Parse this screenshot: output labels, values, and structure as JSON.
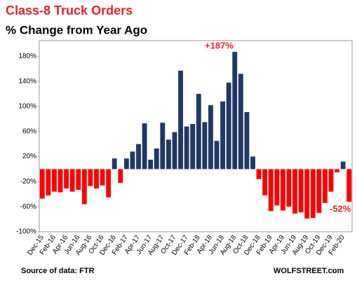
{
  "chart_data": {
    "type": "bar",
    "title": "Class-8 Truck Orders",
    "subtitle": "% Change from Year Ago",
    "categories": [
      "Dec-15",
      null,
      "Feb-16",
      null,
      "Apr-16",
      null,
      "Jun-16",
      null,
      "Aug-16",
      null,
      "Oct-16",
      null,
      "Dec-16",
      null,
      "Feb-17",
      null,
      "Apr-17",
      null,
      "Jun-17",
      null,
      "Aug-17",
      null,
      "Oct-17",
      null,
      "Dec-17",
      null,
      "Feb-18",
      null,
      "Apr-18",
      null,
      "Jun-18",
      null,
      "Aug-18",
      null,
      "Oct-18",
      null,
      "Dec-18",
      null,
      "Feb-19",
      null,
      "Apr-19",
      null,
      "Jun-19",
      null,
      "Aug-19",
      null,
      "Oct-19",
      null,
      "Dec-19",
      null,
      "Feb-20",
      null
    ],
    "values": [
      -47,
      -42,
      -36,
      -37,
      -31,
      -36,
      -33,
      -56,
      -27,
      -31,
      -26,
      -45,
      17,
      -22,
      17,
      28,
      40,
      73,
      15,
      33,
      74,
      47,
      59,
      157,
      68,
      72,
      120,
      75,
      102,
      45,
      108,
      138,
      187,
      152,
      91,
      20,
      -16,
      -42,
      -67,
      -58,
      -66,
      -60,
      -71,
      -69,
      -79,
      -78,
      -70,
      -54,
      -36,
      -5,
      12,
      -52
    ],
    "positive_color": "#1f3864",
    "negative_color": "#ff0000",
    "ylim": [
      -100,
      205
    ],
    "yticks": [
      {
        "value": -100,
        "label": "-100%"
      },
      {
        "value": -60,
        "label": "-60%"
      },
      {
        "value": -20,
        "label": "-20%"
      },
      {
        "value": 20,
        "label": "20%"
      },
      {
        "value": 60,
        "label": "60%"
      },
      {
        "value": 100,
        "label": "100%"
      },
      {
        "value": 140,
        "label": "140%"
      },
      {
        "value": 180,
        "label": "180%"
      }
    ],
    "annotations": [
      "+187%",
      "-52%"
    ],
    "source": "Source of data: FTR",
    "credit": "WOLFSTREET.com"
  }
}
